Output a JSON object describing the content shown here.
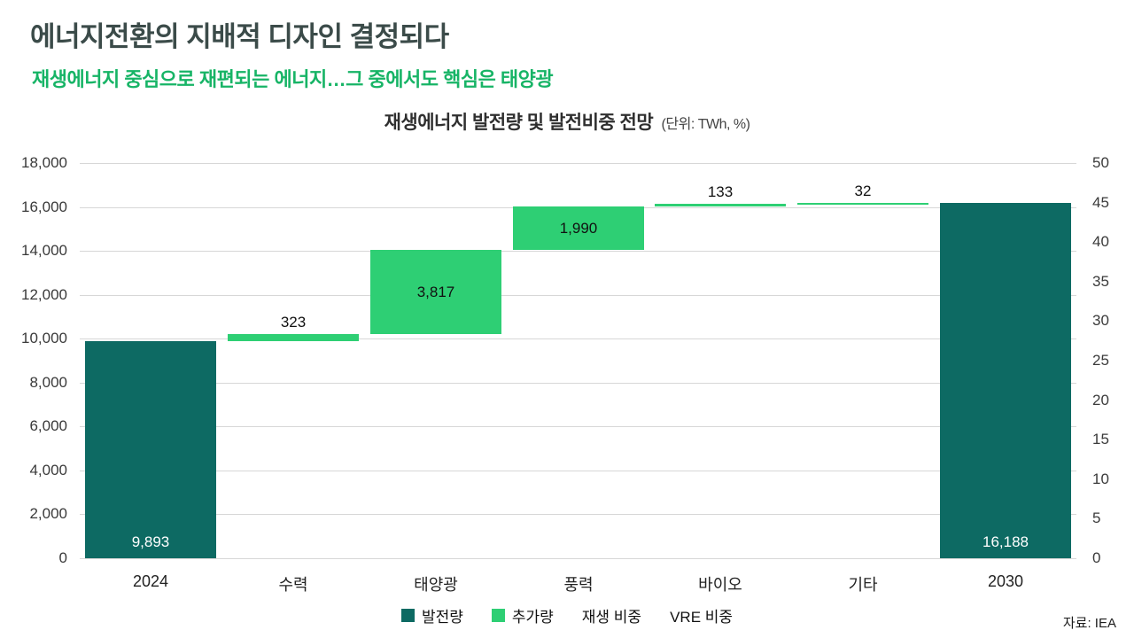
{
  "header": {
    "title": "에너지전환의 지배적 디자인 결정되다",
    "subtitle": "재생에너지 중심으로 재편되는 에너지…그 중에서도 핵심은 태양광"
  },
  "chart": {
    "title": "재생에너지 발전량 및 발전비중 전망",
    "unit_note": "(단위: TWh, %)",
    "source": "자료: IEA"
  },
  "chart_data": {
    "type": "bar",
    "subtype": "waterfall",
    "title": "재생에너지 발전량 및 발전비중 전망",
    "unit": "TWh, %",
    "categories": [
      "2024",
      "수력",
      "태양광",
      "풍력",
      "바이오",
      "기타",
      "2030"
    ],
    "bars": [
      {
        "category": "2024",
        "kind": "total",
        "start": 0,
        "end": 9893,
        "value": 9893,
        "label": "9,893"
      },
      {
        "category": "수력",
        "kind": "increment",
        "start": 9893,
        "end": 10216,
        "value": 323,
        "label": "323"
      },
      {
        "category": "태양광",
        "kind": "increment",
        "start": 10216,
        "end": 14033,
        "value": 3817,
        "label": "3,817"
      },
      {
        "category": "풍력",
        "kind": "increment",
        "start": 14033,
        "end": 16023,
        "value": 1990,
        "label": "1,990"
      },
      {
        "category": "바이오",
        "kind": "increment",
        "start": 16023,
        "end": 16156,
        "value": 133,
        "label": "133"
      },
      {
        "category": "기타",
        "kind": "increment",
        "start": 16156,
        "end": 16188,
        "value": 32,
        "label": "32"
      },
      {
        "category": "2030",
        "kind": "total",
        "start": 0,
        "end": 16188,
        "value": 16188,
        "label": "16,188"
      }
    ],
    "left_axis": {
      "min": 0,
      "max": 18000,
      "step": 2000,
      "tick_labels": [
        "0",
        "2,000",
        "4,000",
        "6,000",
        "8,000",
        "10,000",
        "12,000",
        "14,000",
        "16,000",
        "18,000"
      ]
    },
    "right_axis": {
      "min": 0,
      "max": 50,
      "step": 5,
      "tick_labels": [
        "0",
        "5",
        "10",
        "15",
        "20",
        "25",
        "30",
        "35",
        "40",
        "45",
        "50"
      ]
    },
    "legend": [
      {
        "label": "발전량",
        "marker": "square",
        "color": "#0d6a63"
      },
      {
        "label": "추가량",
        "marker": "square",
        "color": "#2ecf74"
      },
      {
        "label": "재생 비중",
        "marker": "none",
        "color": ""
      },
      {
        "label": "VRE 비중",
        "marker": "none",
        "color": ""
      }
    ],
    "colors": {
      "total": "#0d6a63",
      "increment": "#2ecf74"
    },
    "grid": true,
    "legend_position": "bottom"
  }
}
